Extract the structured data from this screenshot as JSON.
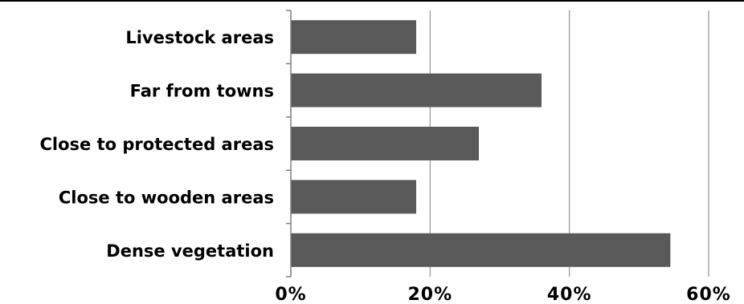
{
  "chart_data": {
    "type": "bar",
    "orientation": "horizontal",
    "categories": [
      "Livestock areas",
      "Far from towns",
      "Close to protected areas",
      "Close to wooden areas",
      "Dense vegetation"
    ],
    "values": [
      18,
      36,
      27,
      18,
      54.5
    ],
    "xlim": [
      0,
      60
    ],
    "xticks": [
      0,
      20,
      40,
      60
    ],
    "tick_labels": [
      "0%",
      "20%",
      "40%",
      "60%"
    ],
    "title": "",
    "xlabel": "",
    "ylabel": "",
    "grid": "vertical",
    "colors": {
      "bar": "#595959",
      "grid": "#a6a6a6",
      "axis": "#7f7f7f",
      "text": "#000000",
      "frame": "#000000"
    }
  }
}
